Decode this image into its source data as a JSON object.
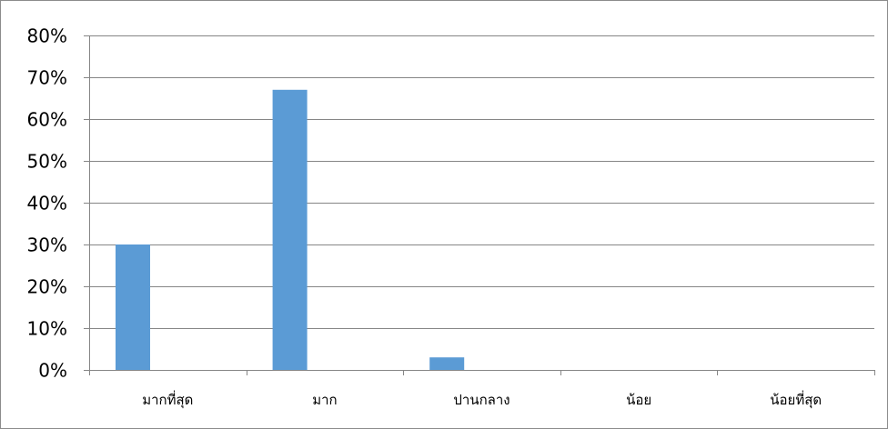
{
  "chart_data": {
    "type": "bar",
    "categories": [
      "มากที่สุด",
      "มาก",
      "ปานกลาง",
      "น้อย",
      "น้อยที่สุด"
    ],
    "series": [
      {
        "values": [
          30,
          67,
          3,
          0,
          0
        ],
        "color": "#5b9bd5"
      }
    ],
    "y_tick_labels": [
      "0%",
      "10%",
      "20%",
      "30%",
      "40%",
      "50%",
      "60%",
      "70%",
      "80%"
    ],
    "ylim": [
      0,
      80
    ],
    "y_unit": "%",
    "grid": true,
    "legend": "none",
    "title": "",
    "xlabel": "",
    "ylabel": ""
  }
}
